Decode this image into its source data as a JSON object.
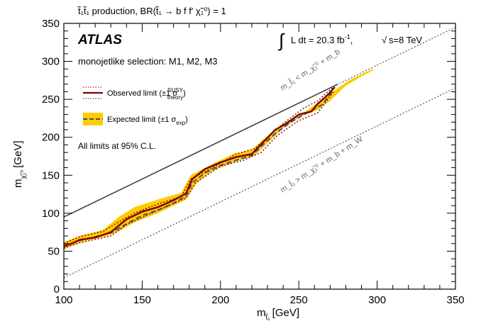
{
  "chart_data": {
    "type": "line",
    "title": "t̃₁t̃₁ production, BR(t̃₁ → b f f′ χ̃₁⁰) = 1",
    "xlabel": "m",
    "xlabel_sub": "t̃₁",
    "xlabel_unit": "[GeV]",
    "ylabel": "m",
    "ylabel_sub": "χ̃₁⁰",
    "ylabel_unit": "[GeV]",
    "xlim": [
      100,
      350
    ],
    "ylim": [
      0,
      350
    ],
    "x_ticks": [
      100,
      150,
      200,
      250,
      300,
      350
    ],
    "y_ticks": [
      0,
      50,
      100,
      150,
      200,
      250,
      300,
      350
    ],
    "grid": false,
    "experiment_label": "ATLAS",
    "lumi_label": "L dt = 20.3 fb",
    "lumi_sup": "-1",
    "energy_label": "s=8 TeV",
    "selection_label": "monojetlike selection: M1, M2, M3",
    "cl_note": "All limits at 95% C.L.",
    "legend_position": "upper-left",
    "diagonal_labels": {
      "upper": "m_t̃₁ < m_χ̃₁⁰ + m_b",
      "lower": "m_t̃₁ > m_χ̃₁⁰ + m_b + m_W"
    },
    "series": [
      {
        "name": "Observed limit (±1 σ",
        "name_sup": "SUSY",
        "name_sub": "theory",
        "name_end": ")",
        "color": "#7a0000",
        "style": "solid",
        "points": [
          [
            100,
            57
          ],
          [
            105,
            60
          ],
          [
            110,
            65
          ],
          [
            120,
            68
          ],
          [
            130,
            75
          ],
          [
            140,
            92
          ],
          [
            150,
            102
          ],
          [
            160,
            108
          ],
          [
            170,
            117
          ],
          [
            178,
            126
          ],
          [
            182,
            145
          ],
          [
            190,
            158
          ],
          [
            200,
            167
          ],
          [
            210,
            174
          ],
          [
            220,
            178
          ],
          [
            227,
            193
          ],
          [
            235,
            210
          ],
          [
            242,
            218
          ],
          [
            250,
            230
          ],
          [
            258,
            234
          ],
          [
            262,
            244
          ],
          [
            268,
            255
          ],
          [
            273,
            266
          ]
        ]
      },
      {
        "name": "Observed +1σ theory",
        "color": "#7a0000",
        "style": "dotted",
        "points": [
          [
            100,
            60
          ],
          [
            110,
            69
          ],
          [
            125,
            76
          ],
          [
            132,
            85
          ],
          [
            145,
            100
          ],
          [
            160,
            112
          ],
          [
            175,
            122
          ],
          [
            181,
            145
          ],
          [
            195,
            160
          ],
          [
            210,
            178
          ],
          [
            222,
            185
          ],
          [
            230,
            200
          ],
          [
            240,
            218
          ],
          [
            252,
            237
          ],
          [
            262,
            248
          ],
          [
            272,
            266
          ]
        ]
      },
      {
        "name": "Observed −1σ theory",
        "color": "#7a0000",
        "style": "dotted",
        "points": [
          [
            100,
            54
          ],
          [
            110,
            61
          ],
          [
            130,
            70
          ],
          [
            140,
            85
          ],
          [
            160,
            104
          ],
          [
            178,
            120
          ],
          [
            184,
            140
          ],
          [
            200,
            162
          ],
          [
            215,
            170
          ],
          [
            226,
            180
          ],
          [
            236,
            202
          ],
          [
            250,
            222
          ],
          [
            262,
            232
          ],
          [
            272,
            260
          ]
        ]
      },
      {
        "name": "Expected limit (±1 σ",
        "name_sub": "exp",
        "name_end": ")",
        "color": "#4a4a8a",
        "style": "dashed",
        "points": [
          [
            100,
            56
          ],
          [
            110,
            64
          ],
          [
            120,
            69
          ],
          [
            130,
            74
          ],
          [
            140,
            86
          ],
          [
            150,
            97
          ],
          [
            160,
            104
          ],
          [
            170,
            113
          ],
          [
            178,
            123
          ],
          [
            182,
            140
          ],
          [
            190,
            153
          ],
          [
            200,
            163
          ],
          [
            210,
            170
          ],
          [
            220,
            176
          ],
          [
            227,
            190
          ],
          [
            235,
            205
          ],
          [
            245,
            220
          ],
          [
            255,
            232
          ],
          [
            265,
            243
          ],
          [
            272,
            262
          ]
        ]
      }
    ],
    "expected_band": {
      "color": "#ffcc00",
      "upper": [
        [
          100,
          62
        ],
        [
          110,
          70
        ],
        [
          125,
          78
        ],
        [
          135,
          95
        ],
        [
          145,
          108
        ],
        [
          160,
          118
        ],
        [
          175,
          127
        ],
        [
          181,
          150
        ],
        [
          195,
          165
        ],
        [
          208,
          178
        ],
        [
          220,
          184
        ],
        [
          230,
          202
        ],
        [
          240,
          218
        ],
        [
          255,
          235
        ],
        [
          268,
          255
        ],
        [
          282,
          275
        ],
        [
          297,
          290
        ]
      ],
      "lower": [
        [
          298,
          289
        ],
        [
          290,
          280
        ],
        [
          280,
          268
        ],
        [
          270,
          248
        ],
        [
          262,
          236
        ],
        [
          252,
          228
        ],
        [
          240,
          212
        ],
        [
          230,
          192
        ],
        [
          222,
          176
        ],
        [
          210,
          168
        ],
        [
          195,
          156
        ],
        [
          185,
          140
        ],
        [
          178,
          118
        ],
        [
          160,
          100
        ],
        [
          145,
          88
        ],
        [
          135,
          76
        ],
        [
          128,
          70
        ],
        [
          115,
          64
        ],
        [
          105,
          57
        ],
        [
          100,
          52
        ]
      ]
    },
    "reference_lines": [
      {
        "name": "kinematic limit m_t̃₁ = m_χ̃₁⁰ + m_b",
        "color": "#333333",
        "style": "solid",
        "points": [
          [
            100,
            95
          ],
          [
            275,
            270
          ]
        ]
      },
      {
        "name": "m_t̃₁ = m_χ̃₁⁰ + m_b",
        "color": "#555555",
        "style": "dotted",
        "points": [
          [
            100,
            95
          ],
          [
            350,
            345
          ]
        ]
      },
      {
        "name": "m_t̃₁ = m_χ̃₁⁰ + m_b + m_W",
        "color": "#555555",
        "style": "dotted",
        "points": [
          [
            100,
            15
          ],
          [
            350,
            265
          ]
        ]
      }
    ]
  }
}
